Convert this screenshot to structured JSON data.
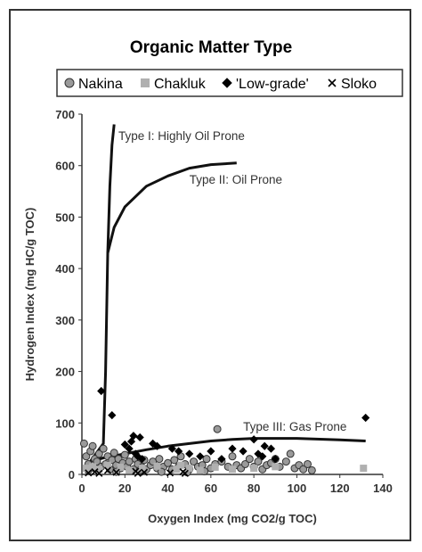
{
  "chart_data": {
    "type": "scatter",
    "title": "Organic Matter Type",
    "xlabel": "Oxygen Index (mg CO2/g TOC)",
    "ylabel": "Hydrogen Index (mg HC/g TOC)",
    "xlim": [
      0,
      140
    ],
    "ylim": [
      0,
      700
    ],
    "x_ticks": [
      "0",
      "20",
      "40",
      "60",
      "80",
      "100",
      "120",
      "140"
    ],
    "y_ticks": [
      "0",
      "100",
      "200",
      "300",
      "400",
      "500",
      "600",
      "700"
    ],
    "grid": false,
    "legend_placement": "top",
    "series": [
      {
        "name": "Nakina",
        "marker": "circle",
        "color": "#9a9a9a",
        "points": [
          [
            1,
            60
          ],
          [
            2,
            35
          ],
          [
            3,
            20
          ],
          [
            4,
            45
          ],
          [
            5,
            55
          ],
          [
            6,
            30
          ],
          [
            7,
            25
          ],
          [
            8,
            40
          ],
          [
            9,
            15
          ],
          [
            10,
            50
          ],
          [
            11,
            20
          ],
          [
            12,
            35
          ],
          [
            13,
            10
          ],
          [
            14,
            28
          ],
          [
            15,
            42
          ],
          [
            16,
            18
          ],
          [
            17,
            30
          ],
          [
            18,
            12
          ],
          [
            19,
            22
          ],
          [
            20,
            38
          ],
          [
            21,
            15
          ],
          [
            22,
            25
          ],
          [
            24,
            10
          ],
          [
            25,
            30
          ],
          [
            26,
            20
          ],
          [
            28,
            14
          ],
          [
            29,
            28
          ],
          [
            30,
            10
          ],
          [
            32,
            18
          ],
          [
            33,
            25
          ],
          [
            35,
            12
          ],
          [
            36,
            30
          ],
          [
            38,
            15
          ],
          [
            40,
            22
          ],
          [
            42,
            10
          ],
          [
            43,
            28
          ],
          [
            45,
            15
          ],
          [
            46,
            35
          ],
          [
            48,
            20
          ],
          [
            50,
            10
          ],
          [
            52,
            25
          ],
          [
            54,
            15
          ],
          [
            56,
            18
          ],
          [
            58,
            30
          ],
          [
            60,
            12
          ],
          [
            62,
            20
          ],
          [
            63,
            88
          ],
          [
            65,
            25
          ],
          [
            68,
            15
          ],
          [
            70,
            35
          ],
          [
            72,
            18
          ],
          [
            74,
            12
          ],
          [
            76,
            20
          ],
          [
            78,
            30
          ],
          [
            80,
            15
          ],
          [
            82,
            25
          ],
          [
            84,
            10
          ],
          [
            86,
            18
          ],
          [
            88,
            22
          ],
          [
            90,
            30
          ],
          [
            92,
            15
          ],
          [
            95,
            25
          ],
          [
            97,
            40
          ],
          [
            99,
            12
          ],
          [
            101,
            18
          ],
          [
            103,
            10
          ],
          [
            105,
            20
          ],
          [
            107,
            8
          ],
          [
            3,
            8
          ],
          [
            6,
            12
          ],
          [
            16,
            5
          ],
          [
            27,
            8
          ],
          [
            37,
            5
          ],
          [
            49,
            4
          ],
          [
            57,
            6
          ]
        ]
      },
      {
        "name": "Chakluk",
        "marker": "square",
        "color": "#b0b0b0",
        "points": [
          [
            2,
            12
          ],
          [
            5,
            15
          ],
          [
            8,
            10
          ],
          [
            12,
            18
          ],
          [
            18,
            14
          ],
          [
            22,
            8
          ],
          [
            28,
            12
          ],
          [
            35,
            16
          ],
          [
            44,
            10
          ],
          [
            46,
            18
          ],
          [
            50,
            12
          ],
          [
            55,
            8
          ],
          [
            62,
            14
          ],
          [
            70,
            10
          ],
          [
            80,
            12
          ],
          [
            90,
            15
          ],
          [
            131,
            12
          ]
        ]
      },
      {
        "name": "'Low-grade'",
        "marker": "diamond",
        "color": "#000000",
        "points": [
          [
            9,
            162
          ],
          [
            14,
            115
          ],
          [
            20,
            58
          ],
          [
            23,
            64
          ],
          [
            24,
            75
          ],
          [
            27,
            72
          ],
          [
            22,
            50
          ],
          [
            25,
            40
          ],
          [
            26,
            35
          ],
          [
            28,
            30
          ],
          [
            33,
            60
          ],
          [
            35,
            55
          ],
          [
            42,
            50
          ],
          [
            45,
            45
          ],
          [
            50,
            40
          ],
          [
            55,
            35
          ],
          [
            60,
            45
          ],
          [
            65,
            30
          ],
          [
            70,
            50
          ],
          [
            75,
            45
          ],
          [
            80,
            68
          ],
          [
            82,
            40
          ],
          [
            84,
            35
          ],
          [
            85,
            55
          ],
          [
            88,
            50
          ],
          [
            90,
            30
          ],
          [
            132,
            110
          ]
        ]
      },
      {
        "name": "Sloko",
        "marker": "x",
        "color": "#000000",
        "points": [
          [
            3,
            3
          ],
          [
            6,
            5
          ],
          [
            8,
            2
          ],
          [
            12,
            8
          ],
          [
            16,
            4
          ],
          [
            25,
            6
          ],
          [
            26,
            2
          ],
          [
            29,
            4
          ],
          [
            41,
            3
          ],
          [
            47,
            5
          ],
          [
            48,
            2
          ]
        ]
      }
    ],
    "curves": [
      {
        "name": "Type I",
        "points": [
          [
            3,
            20
          ],
          [
            10,
            60
          ],
          [
            11,
            200
          ],
          [
            12,
            430
          ],
          [
            13,
            560
          ],
          [
            14,
            640
          ],
          [
            15,
            680
          ]
        ]
      },
      {
        "name": "Type II",
        "points": [
          [
            12,
            430
          ],
          [
            15,
            480
          ],
          [
            20,
            520
          ],
          [
            30,
            560
          ],
          [
            40,
            580
          ],
          [
            50,
            595
          ],
          [
            60,
            602
          ],
          [
            72,
            605
          ]
        ]
      },
      {
        "name": "Type III",
        "points": [
          [
            4,
            25
          ],
          [
            10,
            32
          ],
          [
            20,
            40
          ],
          [
            30,
            48
          ],
          [
            40,
            55
          ],
          [
            50,
            60
          ],
          [
            60,
            65
          ],
          [
            70,
            68
          ],
          [
            80,
            70
          ],
          [
            100,
            70
          ],
          [
            120,
            67
          ],
          [
            132,
            65
          ]
        ]
      }
    ],
    "annotations": [
      {
        "text": "Type I: Highly Oil Prone",
        "x": 17,
        "y": 650
      },
      {
        "text": "Type II: Oil Prone",
        "x": 50,
        "y": 565
      },
      {
        "text": "Type III: Gas Prone",
        "x": 75,
        "y": 85
      }
    ]
  }
}
